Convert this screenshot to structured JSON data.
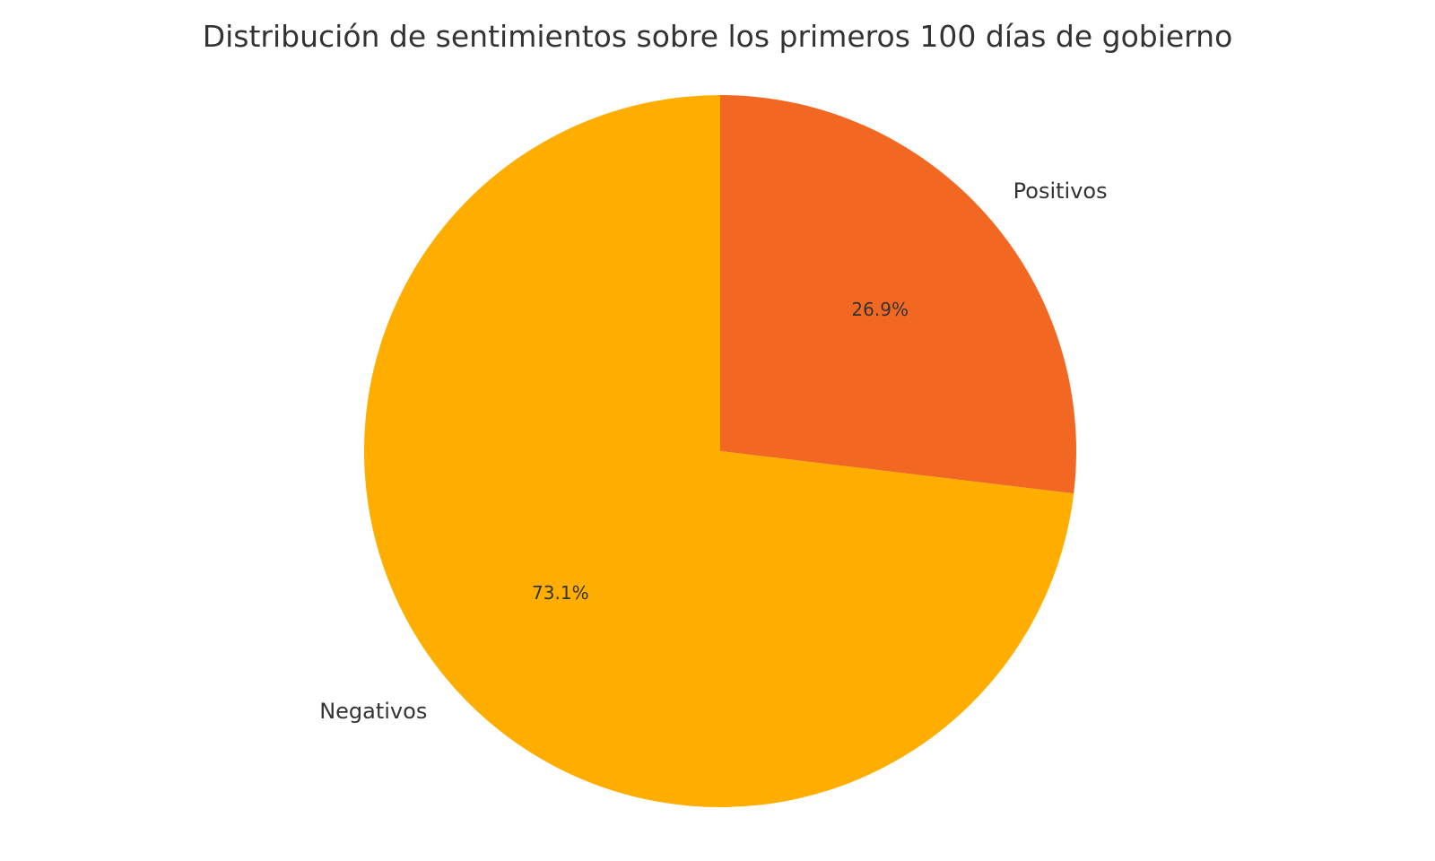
{
  "chart_data": {
    "type": "pie",
    "title": "Distribución de sentimientos sobre los primeros 100 días de gobierno",
    "start_angle_deg": 90,
    "direction": "clockwise",
    "slices": [
      {
        "label": "Positivos",
        "value": 26.9,
        "pct_label": "26.9%",
        "color": "#F26722"
      },
      {
        "label": "Negativos",
        "value": 73.1,
        "pct_label": "73.1%",
        "color": "#FFAE00"
      }
    ]
  }
}
